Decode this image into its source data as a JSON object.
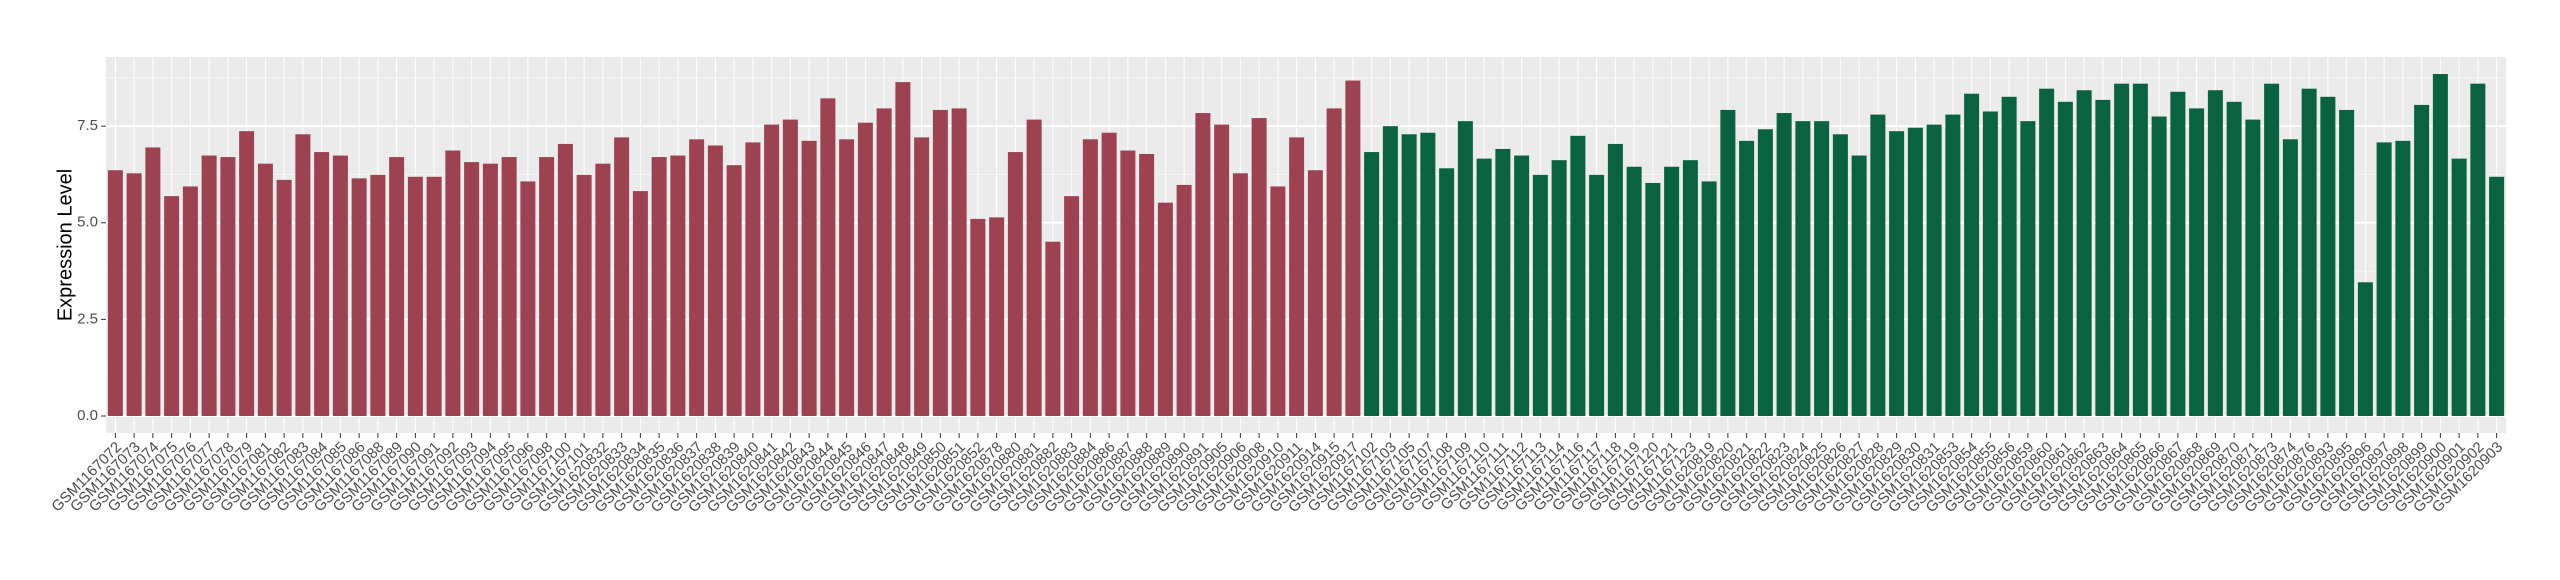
{
  "chart_data": {
    "type": "bar",
    "y_label": "Expression Level",
    "categories": [
      "GSM1167072",
      "GSM1167073",
      "GSM1167074",
      "GSM1167075",
      "GSM1167076",
      "GSM1167077",
      "GSM1167078",
      "GSM1167079",
      "GSM1167081",
      "GSM1167082",
      "GSM1167083",
      "GSM1167084",
      "GSM1167085",
      "GSM1167086",
      "GSM1167088",
      "GSM1167089",
      "GSM1167090",
      "GSM1167091",
      "GSM1167092",
      "GSM1167093",
      "GSM1167094",
      "GSM1167095",
      "GSM1167096",
      "GSM1167098",
      "GSM1167100",
      "GSM1167101",
      "GSM1620832",
      "GSM1620833",
      "GSM1620834",
      "GSM1620835",
      "GSM1620836",
      "GSM1620837",
      "GSM1620838",
      "GSM1620839",
      "GSM1620840",
      "GSM1620841",
      "GSM1620842",
      "GSM1620843",
      "GSM1620844",
      "GSM1620845",
      "GSM1620846",
      "GSM1620847",
      "GSM1620848",
      "GSM1620849",
      "GSM1620850",
      "GSM1620851",
      "GSM1620852",
      "GSM1620878",
      "GSM1620880",
      "GSM1620881",
      "GSM1620882",
      "GSM1620883",
      "GSM1620884",
      "GSM1620886",
      "GSM1620887",
      "GSM1620888",
      "GSM1620889",
      "GSM1620890",
      "GSM1620891",
      "GSM1620905",
      "GSM1620906",
      "GSM1620908",
      "GSM1620910",
      "GSM1620911",
      "GSM1620914",
      "GSM1620915",
      "GSM1620917",
      "GSM1167102",
      "GSM1167103",
      "GSM1167105",
      "GSM1167107",
      "GSM1167108",
      "GSM1167109",
      "GSM1167110",
      "GSM1167111",
      "GSM1167112",
      "GSM1167113",
      "GSM1167114",
      "GSM1167116",
      "GSM1167117",
      "GSM1167118",
      "GSM1167119",
      "GSM1167120",
      "GSM1167121",
      "GSM1167123",
      "GSM1620819",
      "GSM1620820",
      "GSM1620821",
      "GSM1620822",
      "GSM1620823",
      "GSM1620824",
      "GSM1620825",
      "GSM1620826",
      "GSM1620827",
      "GSM1620828",
      "GSM1620829",
      "GSM1620830",
      "GSM1620831",
      "GSM1620853",
      "GSM1620854",
      "GSM1620855",
      "GSM1620856",
      "GSM1620859",
      "GSM1620860",
      "GSM1620861",
      "GSM1620862",
      "GSM1620863",
      "GSM1620864",
      "GSM1620865",
      "GSM1620866",
      "GSM1620867",
      "GSM1620868",
      "GSM1620869",
      "GSM1620870",
      "GSM1620871",
      "GSM1620873",
      "GSM1620874",
      "GSM1620876",
      "GSM1620893",
      "GSM1620895",
      "GSM1620896",
      "GSM1620897",
      "GSM1620898",
      "GSM1620899",
      "GSM1620900",
      "GSM1620901",
      "GSM1620902",
      "GSM1620903"
    ],
    "series": [
      {
        "color": "#9c4251",
        "values": [
          6.36,
          6.28,
          6.95,
          5.69,
          5.94,
          6.74,
          6.7,
          7.37,
          6.53,
          6.11,
          7.29,
          6.83,
          6.74,
          6.15,
          6.24,
          6.7,
          6.19,
          6.19,
          6.87,
          6.57,
          6.53,
          6.7,
          6.07,
          6.7,
          7.04,
          6.24,
          6.53,
          7.21,
          5.82,
          6.7,
          6.74,
          7.16,
          7.0,
          6.49,
          7.08,
          7.54,
          7.67,
          7.12,
          8.22,
          7.16,
          7.59,
          7.96,
          8.64,
          7.21,
          7.92,
          7.96,
          5.1,
          5.14,
          6.83,
          7.67,
          4.51,
          5.69,
          7.16,
          7.33,
          6.87,
          6.78,
          5.52,
          5.98,
          7.84,
          7.54,
          6.28,
          7.71,
          5.94,
          7.21,
          6.36,
          7.96,
          8.68,
          null,
          null,
          null,
          null,
          null,
          null,
          null,
          null,
          null,
          null,
          null,
          null,
          null,
          null,
          null,
          null,
          null,
          null,
          null,
          null,
          null,
          null,
          null,
          null,
          null,
          null,
          null,
          null,
          null,
          null,
          null,
          null,
          null,
          null,
          null,
          null,
          null,
          null,
          null,
          null,
          null,
          null,
          null,
          null,
          null,
          null,
          null,
          null,
          null,
          null,
          null,
          null,
          null,
          null,
          null,
          null,
          null,
          null,
          null,
          null,
          null
        ]
      },
      {
        "color": "#0a6240",
        "values": [
          null,
          null,
          null,
          null,
          null,
          null,
          null,
          null,
          null,
          null,
          null,
          null,
          null,
          null,
          null,
          null,
          null,
          null,
          null,
          null,
          null,
          null,
          null,
          null,
          null,
          null,
          null,
          null,
          null,
          null,
          null,
          null,
          null,
          null,
          null,
          null,
          null,
          null,
          null,
          null,
          null,
          null,
          null,
          null,
          null,
          null,
          null,
          null,
          null,
          null,
          null,
          null,
          null,
          null,
          null,
          null,
          null,
          null,
          null,
          null,
          null,
          null,
          null,
          null,
          null,
          null,
          null,
          6.83,
          7.5,
          7.29,
          7.33,
          6.41,
          7.63,
          6.66,
          6.91,
          6.74,
          6.24,
          6.62,
          7.25,
          6.24,
          7.04,
          6.45,
          6.03,
          6.45,
          6.62,
          6.07,
          7.92,
          7.12,
          7.42,
          7.84,
          7.63,
          7.63,
          7.29,
          6.74,
          7.8,
          7.37,
          7.46,
          7.54,
          7.8,
          8.34,
          7.88,
          8.26,
          7.63,
          8.47,
          8.13,
          8.43,
          8.18,
          8.6,
          8.6,
          7.75,
          8.39,
          7.96,
          8.43,
          8.13,
          7.67,
          8.6,
          7.16,
          8.47,
          8.26,
          7.92,
          3.46,
          7.08,
          7.12,
          8.05,
          8.85,
          6.66,
          8.6,
          6.19
        ]
      }
    ],
    "ylim": [
      -0.44,
      9.29
    ],
    "yticks": [
      {
        "value": 0,
        "label": "0.0"
      },
      2.5,
      {
        "value": 5,
        "label": "5.0"
      },
      7.5
    ],
    "grid": true
  }
}
